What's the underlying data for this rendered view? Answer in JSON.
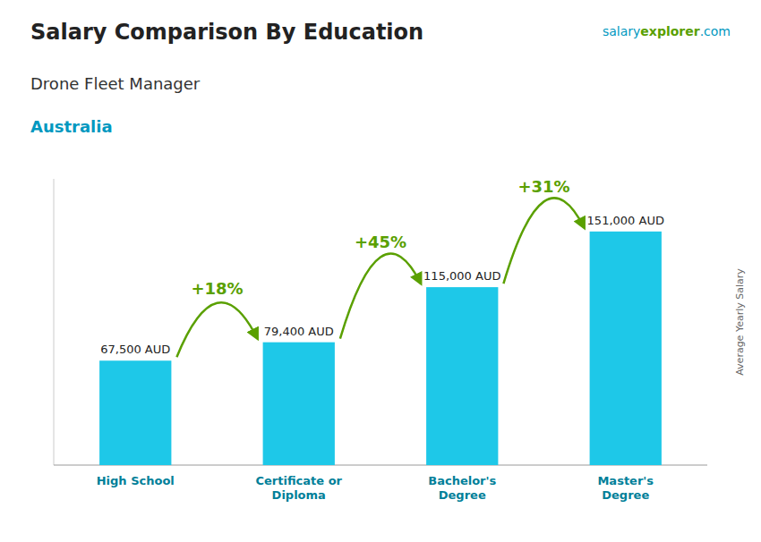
{
  "chart_data": {
    "type": "bar",
    "title": "Salary Comparison By Education",
    "subtitle": "Drone Fleet Manager",
    "annotations": [
      {
        "text": "Australia"
      },
      {
        "text": "salary"
      },
      {
        "text": "explorer"
      },
      {
        "text": ".com"
      }
    ],
    "ylabel": "Average Yearly Salary",
    "categories": [
      "High School",
      "Certificate or\nDiploma",
      "Bachelor's\nDegree",
      "Master's\nDegree"
    ],
    "values": [
      67500,
      79400,
      115000,
      151000
    ],
    "value_labels": [
      "67,500 AUD",
      "79,400 AUD",
      "115,000 AUD",
      "151,000 AUD"
    ],
    "data_labels": true,
    "arcs": [
      {
        "from": 0,
        "to": 1,
        "label": "+18%"
      },
      {
        "from": 1,
        "to": 2,
        "label": "+45%"
      },
      {
        "from": 2,
        "to": 3,
        "label": "+31%"
      }
    ],
    "color": "#1ec8e8",
    "ylim": [
      0,
      185000
    ],
    "tick_labels": false,
    "grid": false
  }
}
